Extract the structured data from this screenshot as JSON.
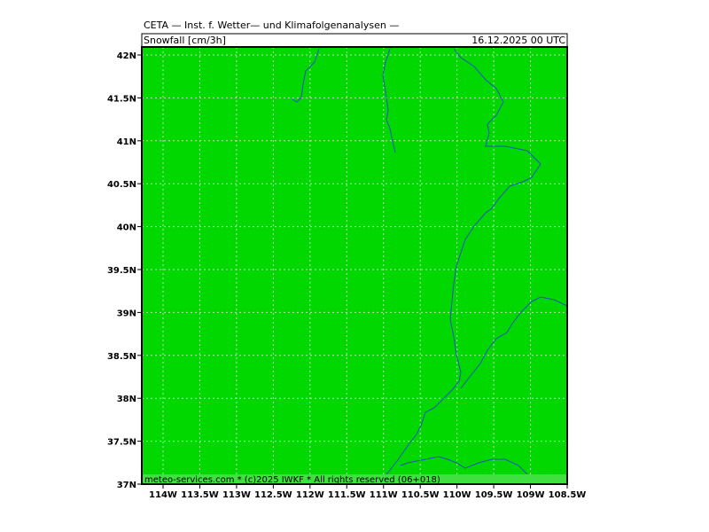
{
  "header": {
    "title": "CETA — Inst. f. Wetter— und Klimafolgenanalysen —",
    "variable": "Snowfall [cm/3h]",
    "valid_time": "16.12.2025 00 UTC"
  },
  "map": {
    "lon_labels": [
      "114W",
      "113.5W",
      "113W",
      "112.5W",
      "112W",
      "111.5W",
      "111W",
      "110.5W",
      "110W",
      "109.5W",
      "109W",
      "108.5W"
    ],
    "lat_labels": [
      "42N",
      "41.5N",
      "41N",
      "40.5N",
      "40N",
      "39.5N",
      "39N",
      "38.5N",
      "38N",
      "37.5N",
      "37N"
    ]
  },
  "footer": {
    "text": "meteo-services.com * (c)2025 IWKF * All rights reserved (06+018)"
  }
}
